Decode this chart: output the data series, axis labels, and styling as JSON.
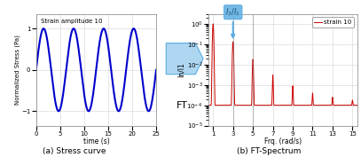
{
  "left_title": "Strain amplitude 10",
  "left_xlabel": "time (s)",
  "left_ylabel": "Normalized Stress (Pa)",
  "left_caption": "(a) Stress curve",
  "left_xlim": [
    0,
    25
  ],
  "left_ylim": [
    -1.35,
    1.35
  ],
  "left_xticks": [
    0,
    5,
    10,
    15,
    20,
    25
  ],
  "left_yticks": [
    -1,
    0,
    1
  ],
  "left_line_color": "#0000cc",
  "right_annot_label": "$I_3/I_1$",
  "right_xlabel": "Frq. (rad/s)",
  "right_ylabel": "In/I1",
  "right_caption": "(b) FT-Spectrum",
  "right_xticks": [
    1,
    3,
    5,
    7,
    9,
    11,
    13,
    15
  ],
  "right_line_color": "#cc0000",
  "right_legend": "strain 10",
  "arrow_body_color": "#aed6f1",
  "arrow_edge_color": "#5dade2",
  "annot_box_color": "#5dade2",
  "annot_text_color": "#1a5276",
  "ft_text": "FT"
}
